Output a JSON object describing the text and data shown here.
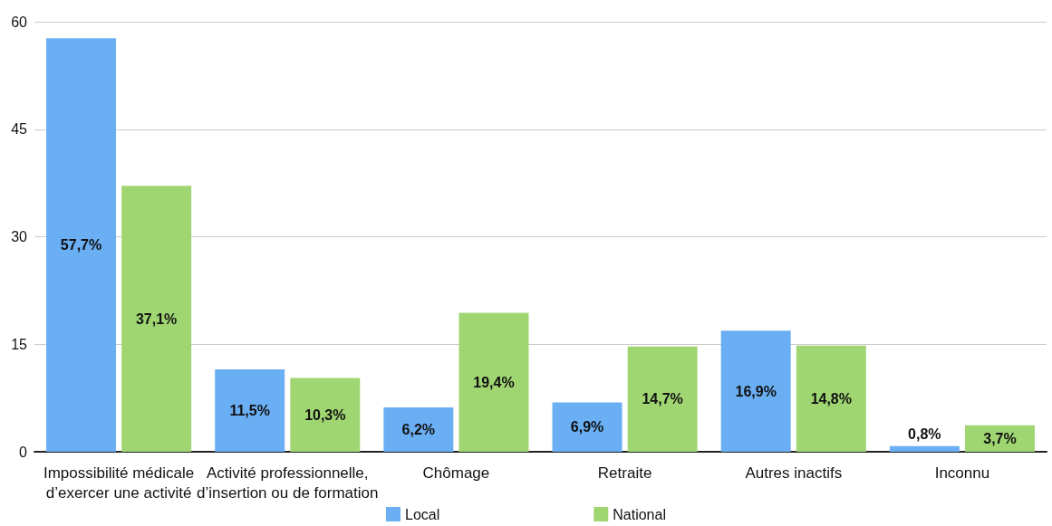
{
  "chart_data": {
    "type": "bar",
    "categories": [
      "Impossibilité médicale\nd’exercer une activité",
      "Activité professionnelle,\nd’insertion ou de formation",
      "Chômage",
      "Retraite",
      "Autres inactifs",
      "Inconnu"
    ],
    "series": [
      {
        "name": "Local",
        "color": "#6aaef3",
        "values": [
          57.7,
          11.5,
          6.2,
          6.9,
          16.9,
          0.8
        ],
        "value_labels": [
          "57,7%",
          "11,5%",
          "6,2%",
          "6,9%",
          "16,9%",
          "0,8%"
        ]
      },
      {
        "name": "National",
        "color": "#a0d672",
        "values": [
          37.1,
          10.3,
          19.4,
          14.7,
          14.8,
          3.7
        ],
        "value_labels": [
          "37,1%",
          "10,3%",
          "19,4%",
          "14,7%",
          "14,8%",
          "3,7%"
        ]
      }
    ],
    "ylim": [
      0,
      60
    ],
    "yticks": [
      0,
      15,
      30,
      45,
      60
    ],
    "grid": "y",
    "legend": "bottom"
  }
}
